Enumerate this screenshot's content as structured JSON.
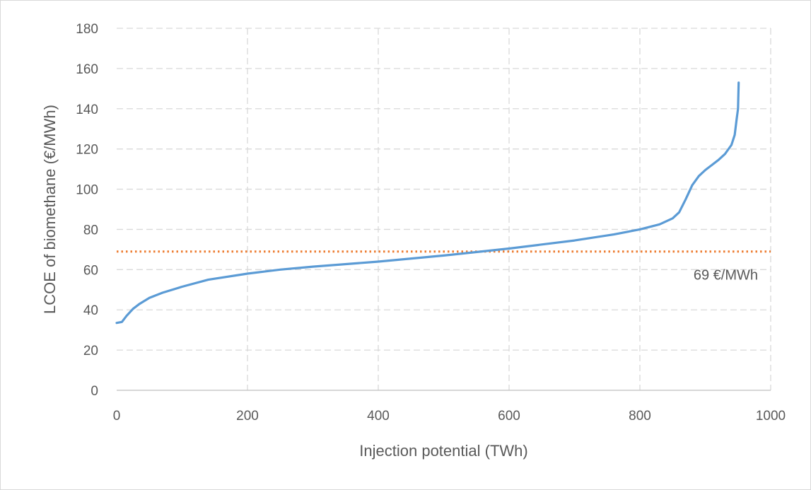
{
  "chart_data": {
    "type": "line",
    "xlabel": "Injection potential (TWh)",
    "ylabel": "LCOE of biomethane (€/MWh)",
    "xlim": [
      0,
      1000
    ],
    "ylim": [
      0,
      180
    ],
    "x_ticks": [
      "0",
      "200",
      "400",
      "600",
      "800",
      "1000"
    ],
    "y_ticks": [
      "0",
      "20",
      "40",
      "60",
      "80",
      "100",
      "120",
      "140",
      "160",
      "180"
    ],
    "grid": "dashed",
    "legend": "none",
    "series": [
      {
        "color": "#5b9bd5",
        "x": [
          0,
          8,
          15,
          25,
          35,
          50,
          70,
          100,
          140,
          200,
          250,
          300,
          400,
          500,
          600,
          700,
          760,
          800,
          830,
          850,
          860,
          870,
          880,
          890,
          900,
          910,
          920,
          930,
          940,
          945,
          948,
          950,
          951
        ],
        "y": [
          33.5,
          34,
          37,
          40.5,
          43,
          46,
          48.5,
          51.5,
          55,
          58,
          60,
          61.5,
          64,
          67,
          70.5,
          74.5,
          77.5,
          80,
          82.5,
          85.5,
          88.5,
          95,
          102,
          106.5,
          109.5,
          112,
          114.5,
          117.5,
          122,
          127,
          135,
          140,
          153
        ]
      }
    ],
    "reference_line": {
      "y": 69,
      "color": "#ed7d31",
      "style": "dotted",
      "label": "69 €/MWh"
    }
  }
}
